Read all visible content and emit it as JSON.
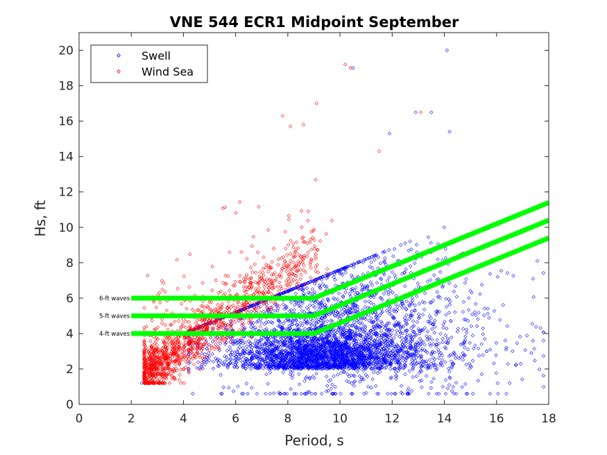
{
  "chart_data": {
    "type": "scatter",
    "title": "VNE 544 ECR1 Midpoint September",
    "xlabel": "Period, s",
    "ylabel": "Hs, ft",
    "xlim": [
      0,
      18
    ],
    "ylim": [
      0,
      21
    ],
    "xticks": [
      0,
      2,
      4,
      6,
      8,
      10,
      12,
      14,
      16,
      18
    ],
    "yticks": [
      0,
      2,
      4,
      6,
      8,
      10,
      12,
      14,
      16,
      18,
      20
    ],
    "grid": false,
    "legend": {
      "position": "top-left",
      "entries": [
        {
          "label": "Swell",
          "color": "#0000ff",
          "marker": "diamond"
        },
        {
          "label": "Wind Sea",
          "color": "#ff0000",
          "marker": "diamond"
        }
      ]
    },
    "series": [
      {
        "name": "Swell",
        "color": "#0000ff",
        "marker": "diamond",
        "approx_count": 4000,
        "notable_points": [
          {
            "x": 14.1,
            "y": 20.0
          },
          {
            "x": 10.5,
            "y": 19.0
          },
          {
            "x": 12.9,
            "y": 16.5
          },
          {
            "x": 13.5,
            "y": 16.5
          },
          {
            "x": 14.2,
            "y": 15.4
          },
          {
            "x": 11.9,
            "y": 15.3
          },
          {
            "x": 2.4,
            "y": 1.2
          },
          {
            "x": 17.8,
            "y": 3.6
          },
          {
            "x": 17.4,
            "y": 7.1
          },
          {
            "x": 16.5,
            "y": 1.2
          }
        ]
      },
      {
        "name": "Wind Sea",
        "color": "#ff0000",
        "marker": "diamond",
        "approx_count": 1400,
        "notable_points": [
          {
            "x": 10.2,
            "y": 19.2
          },
          {
            "x": 10.4,
            "y": 19.0
          },
          {
            "x": 9.1,
            "y": 17.0
          },
          {
            "x": 8.6,
            "y": 15.8
          },
          {
            "x": 8.1,
            "y": 15.7
          },
          {
            "x": 7.8,
            "y": 16.3
          },
          {
            "x": 13.1,
            "y": 16.5
          },
          {
            "x": 11.5,
            "y": 14.3
          },
          {
            "x": 2.7,
            "y": 1.8
          }
        ]
      }
    ],
    "threshold_lines": [
      {
        "label": "4-ft waves",
        "color": "#00ff00",
        "points": [
          [
            2,
            4
          ],
          [
            9,
            4
          ],
          [
            18,
            9.4
          ]
        ]
      },
      {
        "label": "5-ft waves",
        "color": "#00ff00",
        "points": [
          [
            2,
            5
          ],
          [
            9,
            5
          ],
          [
            18,
            10.4
          ]
        ]
      },
      {
        "label": "6-ft waves",
        "color": "#00ff00",
        "points": [
          [
            2,
            6
          ],
          [
            9,
            6
          ],
          [
            18,
            11.4
          ]
        ]
      }
    ]
  }
}
